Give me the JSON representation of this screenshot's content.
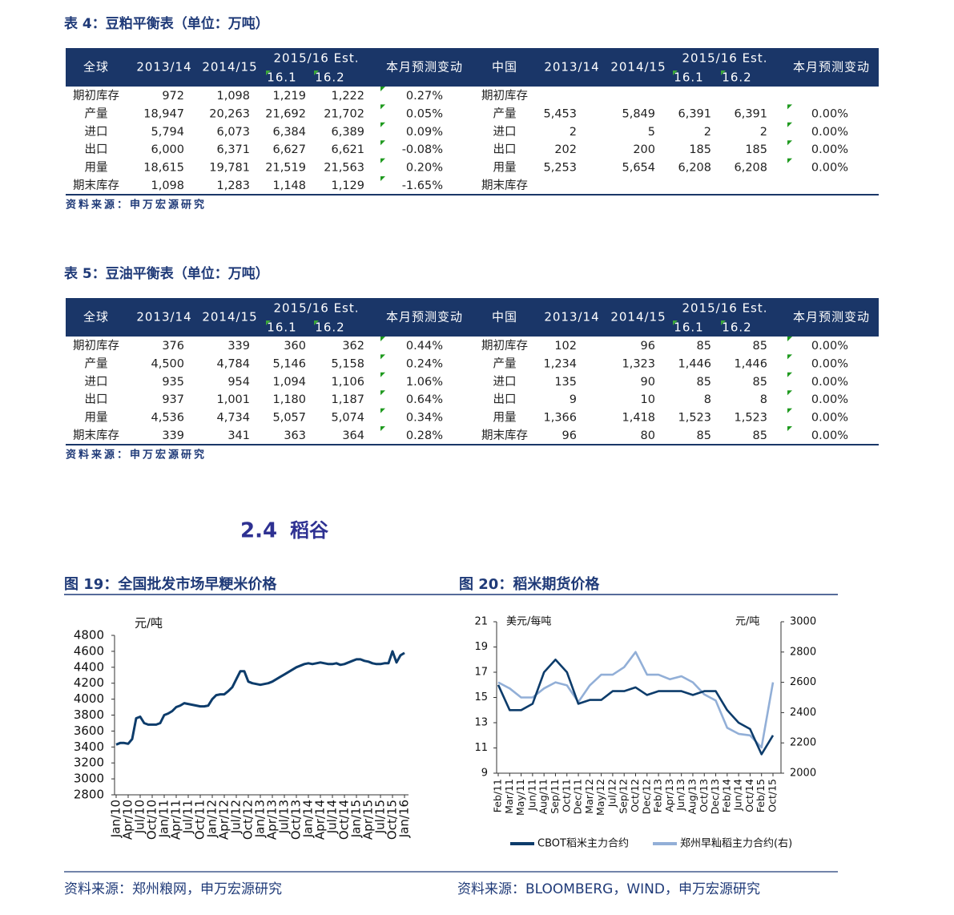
{
  "table4": {
    "title": "表 4：豆粕平衡表（单位：万吨）",
    "header": {
      "region_global": "全球",
      "region_china": "中国",
      "years": [
        "2013/14",
        "2014/15"
      ],
      "est": "2015/16 Est.",
      "months": [
        "16.1",
        "16.2"
      ],
      "change": "本月预测变动"
    },
    "rows": [
      {
        "label": "期初库存",
        "global": [
          "972",
          "1,098",
          "1,219",
          "1,222",
          "0.27%"
        ],
        "china": [
          null,
          null,
          null,
          null,
          null
        ]
      },
      {
        "label": "产量",
        "global": [
          "18,947",
          "20,263",
          "21,692",
          "21,702",
          "0.05%"
        ],
        "china": [
          "5,453",
          "5,849",
          "6,391",
          "6,391",
          "0.00%"
        ]
      },
      {
        "label": "进口",
        "global": [
          "5,794",
          "6,073",
          "6,384",
          "6,389",
          "0.09%"
        ],
        "china": [
          "2",
          "5",
          "2",
          "2",
          "0.00%"
        ]
      },
      {
        "label": "出口",
        "global": [
          "6,000",
          "6,371",
          "6,627",
          "6,621",
          "-0.08%"
        ],
        "china": [
          "202",
          "200",
          "185",
          "185",
          "0.00%"
        ]
      },
      {
        "label": "用量",
        "global": [
          "18,615",
          "19,781",
          "21,519",
          "21,563",
          "0.20%"
        ],
        "china": [
          "5,253",
          "5,654",
          "6,208",
          "6,208",
          "0.00%"
        ]
      },
      {
        "label": "期末库存",
        "global": [
          "1,098",
          "1,283",
          "1,148",
          "1,129",
          "-1.65%"
        ],
        "china": [
          null,
          null,
          null,
          null,
          null
        ]
      }
    ],
    "source": "资料来源：申万宏源研究"
  },
  "table5": {
    "title": "表 5：豆油平衡表（单位：万吨）",
    "header": {
      "region_global": "全球",
      "region_china": "中国",
      "years": [
        "2013/14",
        "2014/15"
      ],
      "est": "2015/16 Est.",
      "months": [
        "16.1",
        "16.2"
      ],
      "change": "本月预测变动"
    },
    "rows": [
      {
        "label": "期初库存",
        "global": [
          "376",
          "339",
          "360",
          "362",
          "0.44%"
        ],
        "china": [
          "102",
          "96",
          "85",
          "85",
          "0.00%"
        ]
      },
      {
        "label": "产量",
        "global": [
          "4,500",
          "4,784",
          "5,146",
          "5,158",
          "0.24%"
        ],
        "china": [
          "1,234",
          "1,323",
          "1,446",
          "1,446",
          "0.00%"
        ]
      },
      {
        "label": "进口",
        "global": [
          "935",
          "954",
          "1,094",
          "1,106",
          "1.06%"
        ],
        "china": [
          "135",
          "90",
          "85",
          "85",
          "0.00%"
        ]
      },
      {
        "label": "出口",
        "global": [
          "937",
          "1,001",
          "1,180",
          "1,187",
          "0.64%"
        ],
        "china": [
          "9",
          "10",
          "8",
          "8",
          "0.00%"
        ]
      },
      {
        "label": "用量",
        "global": [
          "4,536",
          "4,734",
          "5,057",
          "5,074",
          "0.34%"
        ],
        "china": [
          "1,366",
          "1,418",
          "1,523",
          "1,523",
          "0.00%"
        ]
      },
      {
        "label": "期末库存",
        "global": [
          "339",
          "341",
          "363",
          "364",
          "0.28%"
        ],
        "china": [
          "96",
          "80",
          "85",
          "85",
          "0.00%"
        ]
      }
    ],
    "source": "资料来源：申万宏源研究"
  },
  "section": {
    "number": "2.4",
    "title": "稻谷"
  },
  "chart_data": [
    {
      "type": "line",
      "title": "图 19：全国批发市场早粳米价格",
      "y_label": "元/吨",
      "source": "资料来源：郑州粮网，申万宏源研究",
      "color": "#0d3c6b",
      "categories": [
        "Jan/10",
        null,
        null,
        "Apr/10",
        null,
        null,
        "Jul/10",
        null,
        null,
        "Oct/10",
        null,
        null,
        "Jan/11",
        null,
        null,
        "Apr/11",
        null,
        null,
        "Jul/11",
        null,
        null,
        "Oct/11",
        null,
        null,
        "Jan/12",
        null,
        null,
        "Apr/12",
        null,
        null,
        "Jul/12",
        null,
        null,
        "Oct/12",
        null,
        null,
        "Jan/13",
        null,
        null,
        "Apr/13",
        null,
        null,
        "Jul/13",
        null,
        null,
        "Oct/13",
        null,
        null,
        "Jan/14",
        null,
        null,
        "Apr/14",
        null,
        null,
        "Jul/14",
        null,
        null,
        "Oct/14",
        null,
        null,
        "Jan/15",
        null,
        null,
        "Apr/15",
        null,
        null,
        "Jul/15",
        null,
        null,
        "Oct/15",
        null,
        null,
        "Jan/16"
      ],
      "values": [
        3430,
        3450,
        3450,
        3440,
        3500,
        3760,
        3780,
        3700,
        3680,
        3680,
        3680,
        3700,
        3800,
        3820,
        3850,
        3900,
        3920,
        3950,
        3940,
        3930,
        3920,
        3910,
        3910,
        3920,
        4000,
        4050,
        4060,
        4060,
        4100,
        4150,
        4250,
        4350,
        4350,
        4220,
        4200,
        4190,
        4180,
        4190,
        4200,
        4220,
        4250,
        4280,
        4310,
        4340,
        4370,
        4400,
        4420,
        4440,
        4450,
        4440,
        4450,
        4460,
        4450,
        4440,
        4440,
        4450,
        4430,
        4440,
        4460,
        4480,
        4500,
        4500,
        4480,
        4470,
        4450,
        4440,
        4440,
        4450,
        4450,
        4600,
        4460,
        4550,
        4580
      ],
      "ylim": [
        2800,
        4800
      ],
      "yticks": [
        2800,
        3000,
        3200,
        3400,
        3600,
        3800,
        4000,
        4200,
        4400,
        4600,
        4800
      ]
    },
    {
      "type": "line",
      "title": "图 20：稻米期货价格",
      "y_label": "美元/每吨",
      "y2_label": "元/吨",
      "source": "资料来源：BLOOMBERG，WIND，申万宏源研究",
      "categories": [
        "Feb/11",
        "Mar/11",
        "May/11",
        "Jun/11",
        "Aug/11",
        "Sep/11",
        "Oct/11",
        "Dec/11",
        "Mar/12",
        "May/12",
        "Jul/12",
        "Sep/12",
        "Oct/12",
        "Dec/12",
        "Feb/13",
        "Apr/13",
        "Jun/13",
        "Aug/13",
        "Oct/13",
        "Dec/13",
        "Feb/14",
        "Jun/14",
        "Oct/14",
        "Feb/15",
        "Oct/15"
      ],
      "series": [
        {
          "name": "CBOT稻米主力合约",
          "color": "#0d3c6b",
          "values": [
            16,
            14,
            14,
            14.5,
            17,
            18,
            17,
            14.5,
            14.8,
            14.8,
            15.5,
            15.5,
            15.8,
            15.2,
            15.5,
            15.5,
            15.5,
            15.2,
            15.5,
            15.5,
            14,
            13,
            12.5,
            10.5,
            12
          ]
        },
        {
          "name": "郑州早籼稻主力合约(右)",
          "color": "#92afd7",
          "axis": "y2",
          "values": [
            2600,
            2560,
            2500,
            2500,
            2560,
            2600,
            2580,
            2470,
            2580,
            2650,
            2650,
            2700,
            2800,
            2650,
            2650,
            2620,
            2640,
            2600,
            2520,
            2480,
            2300,
            2260,
            2250,
            2170,
            2600
          ]
        }
      ],
      "ylim": [
        9,
        21
      ],
      "yticks": [
        9,
        11,
        13,
        15,
        17,
        19,
        21
      ],
      "y2lim": [
        2000,
        3000
      ],
      "y2ticks": [
        2000,
        2200,
        2400,
        2600,
        2800,
        3000
      ]
    }
  ]
}
